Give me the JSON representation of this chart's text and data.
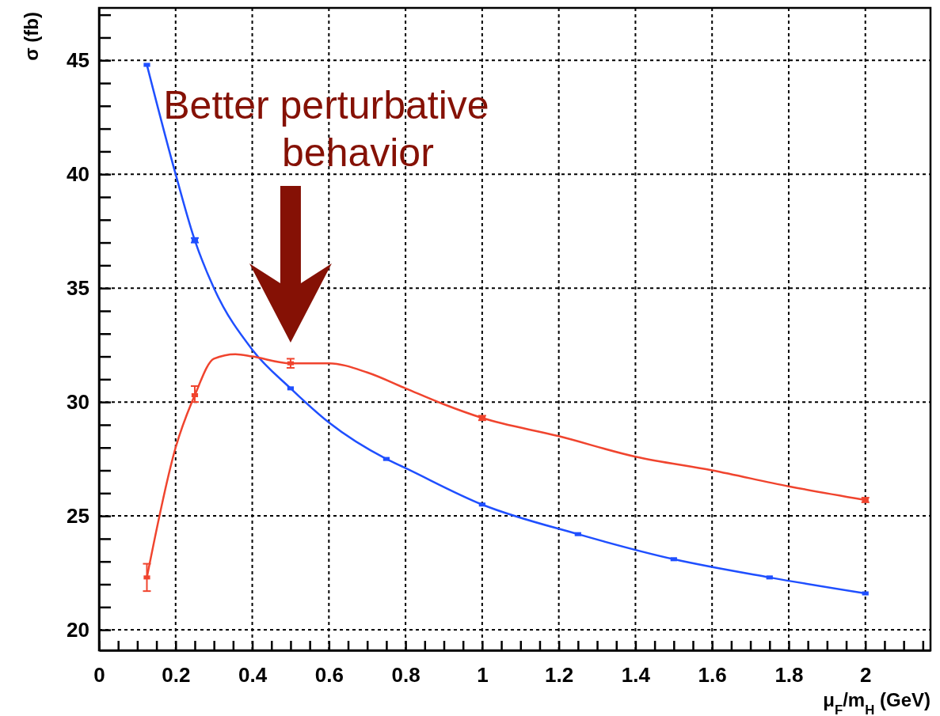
{
  "chart_data": {
    "type": "line",
    "xlabel": "μ$_{F}$/m$_{H}$ (GeV)",
    "ylabel": "σ (fb)",
    "xlim": [
      0,
      2.17
    ],
    "ylim": [
      19.1,
      47.3
    ],
    "xticks": [
      0,
      {
        "value": 0.05,
        "label": null
      },
      {
        "value": 0.1,
        "label": null
      },
      {
        "value": 0.15,
        "label": null
      },
      0.2,
      {
        "value": 0.25,
        "label": null
      },
      {
        "value": 0.3,
        "label": null
      },
      {
        "value": 0.35,
        "label": null
      },
      0.4,
      {
        "value": 0.45,
        "label": null
      },
      {
        "value": 0.5,
        "label": null
      },
      {
        "value": 0.55,
        "label": null
      },
      0.6,
      {
        "value": 0.65,
        "label": null
      },
      {
        "value": 0.7,
        "label": null
      },
      {
        "value": 0.75,
        "label": null
      },
      0.8,
      {
        "value": 0.85,
        "label": null
      },
      {
        "value": 0.9,
        "label": null
      },
      {
        "value": 0.95,
        "label": null
      },
      1,
      {
        "value": 1.05,
        "label": null
      },
      {
        "value": 1.1,
        "label": null
      },
      {
        "value": 1.15,
        "label": null
      },
      1.2,
      {
        "value": 1.25,
        "label": null
      },
      {
        "value": 1.3,
        "label": null
      },
      {
        "value": 1.35,
        "label": null
      },
      1.4,
      {
        "value": 1.45,
        "label": null
      },
      {
        "value": 1.5,
        "label": null
      },
      {
        "value": 1.55,
        "label": null
      },
      1.6,
      {
        "value": 1.65,
        "label": null
      },
      {
        "value": 1.7,
        "label": null
      },
      {
        "value": 1.75,
        "label": null
      },
      1.8,
      {
        "value": 1.85,
        "label": null
      },
      {
        "value": 1.9,
        "label": null
      },
      {
        "value": 1.95,
        "label": null
      },
      2,
      {
        "value": 2.05,
        "label": null
      },
      {
        "value": 2.1,
        "label": null
      },
      {
        "value": 2.15,
        "label": null
      }
    ],
    "yticks": [
      20,
      {
        "value": 21,
        "label": null
      },
      {
        "value": 22,
        "label": null
      },
      {
        "value": 23,
        "label": null
      },
      {
        "value": 24,
        "label": null
      },
      25,
      {
        "value": 26,
        "label": null
      },
      {
        "value": 27,
        "label": null
      },
      {
        "value": 28,
        "label": null
      },
      {
        "value": 29,
        "label": null
      },
      30,
      {
        "value": 31,
        "label": null
      },
      {
        "value": 32,
        "label": null
      },
      {
        "value": 33,
        "label": null
      },
      {
        "value": 34,
        "label": null
      },
      35,
      {
        "value": 36,
        "label": null
      },
      {
        "value": 37,
        "label": null
      },
      {
        "value": 38,
        "label": null
      },
      {
        "value": 39,
        "label": null
      },
      40,
      {
        "value": 41,
        "label": null
      },
      {
        "value": 42,
        "label": null
      },
      {
        "value": 43,
        "label": null
      },
      {
        "value": 44,
        "label": null
      },
      45,
      {
        "value": 46,
        "label": null
      },
      {
        "value": 47,
        "label": null
      }
    ],
    "grid": true,
    "line_style": "solid",
    "series": [
      {
        "type": "line",
        "color": "#1f4fff",
        "marker": "none",
        "x": [
          0.125,
          0.2,
          0.25,
          0.3,
          0.4,
          0.5,
          0.6,
          0.75,
          0.8,
          1,
          1.25,
          1.5,
          1.75,
          2
        ],
        "values": [
          44.8,
          40.0,
          37.1,
          35.0,
          32.3,
          30.6,
          29.1,
          27.5,
          27.1,
          25.5,
          24.2,
          23.1,
          22.3,
          21.6
        ]
      },
      {
        "type": "scatter",
        "color": "#1f4fff",
        "marker": "square",
        "x": [
          0.125,
          0.25,
          0.5,
          0.75,
          1,
          1.25,
          1.5,
          1.75,
          2
        ],
        "values": [
          44.8,
          37.1,
          30.6,
          27.5,
          25.5,
          24.2,
          23.1,
          22.3,
          21.6
        ],
        "errors": [
          null,
          0.1,
          null,
          null,
          null,
          null,
          null,
          null,
          null
        ]
      },
      {
        "type": "line",
        "color": "#f0442e",
        "marker": "none",
        "x": [
          0.125,
          0.2,
          0.25,
          0.3,
          0.356,
          0.4,
          0.5,
          0.6,
          0.7,
          0.8,
          0.9,
          1,
          1.2,
          1.4,
          1.6,
          1.8,
          2
        ],
        "values": [
          22.3,
          28.0,
          30.3,
          31.9,
          32.1,
          32.0,
          31.7,
          31.7,
          31.3,
          30.6,
          29.9,
          29.3,
          28.5,
          27.6,
          27.0,
          26.3,
          25.7
        ]
      },
      {
        "type": "scatter",
        "color": "#f0442e",
        "marker": "square",
        "x": [
          0.125,
          0.25,
          0.5,
          1,
          2
        ],
        "values": [
          22.3,
          30.3,
          31.7,
          29.3,
          25.7
        ],
        "errors": [
          [
            21.7,
            22.9
          ],
          [
            30.0,
            30.7
          ],
          0.2,
          0.1,
          0.1
        ]
      }
    ],
    "annotations": [
      "Better perturbative behavior"
    ]
  }
}
